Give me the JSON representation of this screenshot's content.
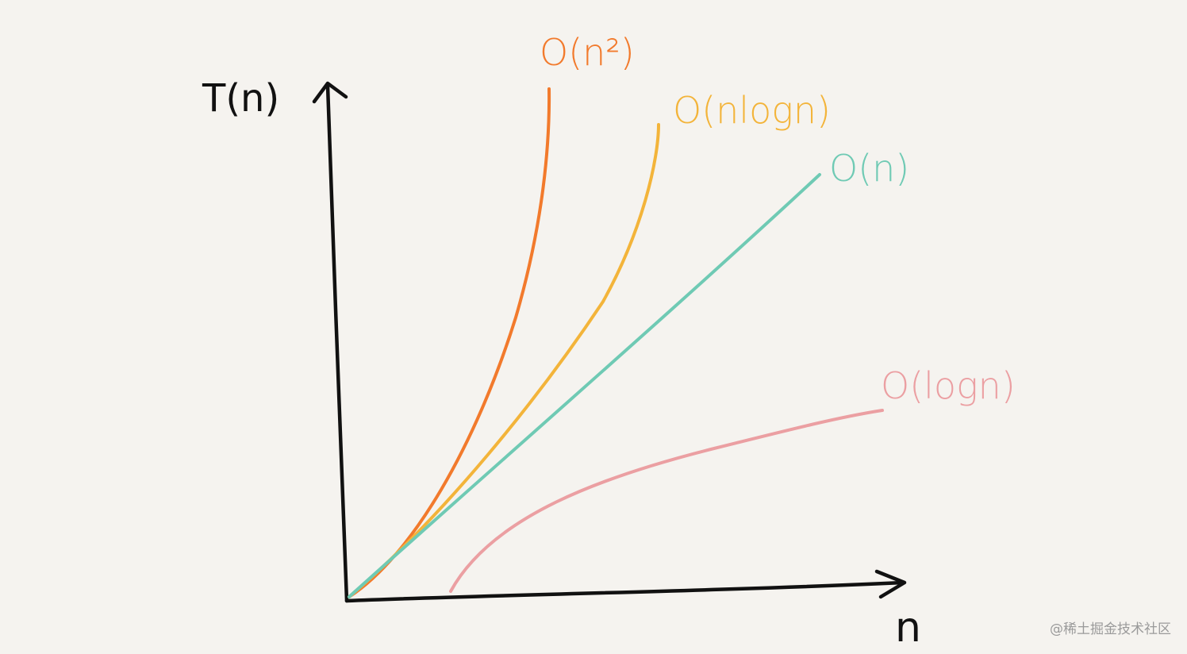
{
  "axes": {
    "y_label": "T(n)",
    "x_label": "n"
  },
  "curves": [
    {
      "label": "O(n²)",
      "color": "#f27a2c"
    },
    {
      "label": "O(nlogn)",
      "color": "#f3b43a"
    },
    {
      "label": "O(n)",
      "color": "#6fcab4"
    },
    {
      "label": "O(logn)",
      "color": "#eb9fa2"
    }
  ],
  "watermark": "@稀土掘金技术社区"
}
